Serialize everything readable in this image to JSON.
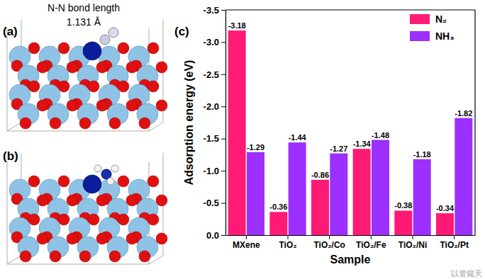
{
  "figure": {
    "panels": [
      {
        "label": "(a)",
        "annotations": [
          "N-N bond length",
          "1.131 Å"
        ]
      },
      {
        "label": "(b)"
      }
    ],
    "watermark": "以管窥天"
  },
  "chart_data": {
    "type": "bar",
    "annotations": [
      "(c)"
    ],
    "x_label": "Sample",
    "y_label": "Adsorption energy (eV)",
    "categories": [
      "MXene",
      "TiO₂",
      "TiO₂/Co",
      "TiO₂/Fe",
      "TiO₂/Ni",
      "TiO₂/Pt"
    ],
    "series": [
      {
        "name": "N₂",
        "color": "#ff1a75",
        "values": [
          -3.18,
          -0.36,
          -0.86,
          -1.34,
          -0.38,
          -0.34
        ]
      },
      {
        "name": "NH₃",
        "color": "#9b30ff",
        "values": [
          -1.29,
          -1.44,
          -1.27,
          -1.48,
          -1.18,
          -1.82
        ]
      }
    ],
    "ylim": [
      0,
      -3.5
    ],
    "yticks": [
      {
        "value": 0,
        "label": "0.0"
      },
      -0.5,
      {
        "value": -1,
        "label": "-1.0"
      },
      -1.5,
      {
        "value": -2,
        "label": "-2.0"
      },
      -2.5,
      {
        "value": -3,
        "label": "-3.0"
      },
      -3.5
    ],
    "data_labels": true,
    "legend": "upper right",
    "grid": false
  }
}
